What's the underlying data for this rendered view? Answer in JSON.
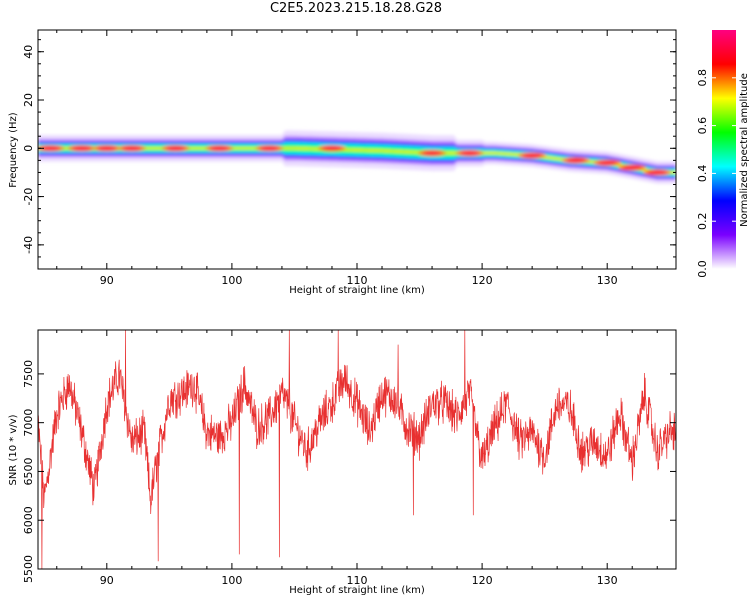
{
  "page_title": "C2E5.2023.215.18.28.G28",
  "chart_data": [
    {
      "type": "heatmap",
      "name": "spectrogram",
      "xlabel": "Height of straight line (km)",
      "ylabel": "Frequency (Hz)",
      "xlim": [
        84.5,
        135.5
      ],
      "ylim": [
        -50,
        49
      ],
      "xticks": [
        90,
        100,
        110,
        120,
        130
      ],
      "yticks": [
        40,
        20,
        0,
        -20,
        -40
      ],
      "colorbar": {
        "label": "Normalized spectral amplitude",
        "range": [
          0.0,
          1.0
        ],
        "ticks": [
          0.0,
          0.2,
          0.4,
          0.6,
          0.8
        ],
        "colors": [
          "#ffffff",
          "#7a00ff",
          "#0000ff",
          "#00ffff",
          "#00ff00",
          "#ffff00",
          "#ff0000",
          "#ff0080"
        ]
      },
      "ridge": {
        "x": [
          84.5,
          95,
          105,
          112,
          116,
          119,
          121,
          124,
          127,
          130,
          132,
          134,
          135
        ],
        "freq": [
          0,
          0,
          0,
          -1,
          -2,
          -2,
          -2,
          -3,
          -5,
          -6,
          -8,
          -10,
          -10
        ]
      },
      "hotspots": [
        {
          "x": 85.5,
          "freq": 0
        },
        {
          "x": 88,
          "freq": 0
        },
        {
          "x": 90,
          "freq": 0
        },
        {
          "x": 92,
          "freq": 0
        },
        {
          "x": 95.5,
          "freq": 0
        },
        {
          "x": 99,
          "freq": 0
        },
        {
          "x": 103,
          "freq": 0
        },
        {
          "x": 108,
          "freq": 0
        },
        {
          "x": 116,
          "freq": -2
        },
        {
          "x": 119,
          "freq": -2
        },
        {
          "x": 124,
          "freq": -3
        },
        {
          "x": 127.5,
          "freq": -5
        },
        {
          "x": 130,
          "freq": -6
        },
        {
          "x": 132,
          "freq": -8
        },
        {
          "x": 134,
          "freq": -10
        }
      ]
    },
    {
      "type": "line",
      "name": "snr",
      "xlabel": "Height of straight line (km)",
      "ylabel": "SNR (10 * v/v)",
      "xlim": [
        84.5,
        135.5
      ],
      "ylim": [
        5500,
        7950
      ],
      "xticks": [
        90,
        100,
        110,
        120,
        130
      ],
      "yticks": [
        5500,
        6000,
        6500,
        7000,
        7500
      ],
      "color": "#e83030",
      "trend": {
        "x": [
          84.5,
          85,
          86,
          87,
          88,
          89,
          90,
          91,
          92,
          93,
          93.5,
          94,
          95,
          96,
          97,
          98,
          99,
          100,
          101,
          102,
          103,
          104,
          105,
          106,
          107,
          108,
          109,
          110,
          111,
          112,
          113,
          114,
          115,
          116,
          117,
          118,
          119,
          120,
          121,
          122,
          123,
          124,
          125,
          126,
          127,
          128,
          129,
          130,
          131,
          132,
          133,
          134,
          135
        ],
        "y": [
          7000,
          6200,
          7100,
          7400,
          6900,
          6300,
          7200,
          7500,
          6800,
          6900,
          6200,
          6600,
          7250,
          7300,
          7400,
          6900,
          6850,
          7000,
          7400,
          6950,
          7050,
          7300,
          7000,
          6700,
          7000,
          7200,
          7450,
          7200,
          6900,
          7300,
          7250,
          6950,
          6850,
          7200,
          7200,
          7050,
          7300,
          6600,
          6950,
          7200,
          6800,
          6900,
          6650,
          7200,
          7150,
          6700,
          6800,
          6650,
          7100,
          6600,
          7300,
          6700,
          6900
        ]
      },
      "noise_amplitude": 180,
      "spikes": [
        {
          "x": 84.8,
          "y": 5500
        },
        {
          "x": 91.5,
          "y": 7950
        },
        {
          "x": 94.1,
          "y": 5580
        },
        {
          "x": 100.6,
          "y": 5650
        },
        {
          "x": 103.8,
          "y": 5620
        },
        {
          "x": 104.6,
          "y": 7950
        },
        {
          "x": 108.5,
          "y": 7950
        },
        {
          "x": 113.3,
          "y": 7800
        },
        {
          "x": 114.5,
          "y": 6050
        },
        {
          "x": 118.6,
          "y": 7950
        },
        {
          "x": 119.3,
          "y": 6050
        }
      ]
    }
  ]
}
